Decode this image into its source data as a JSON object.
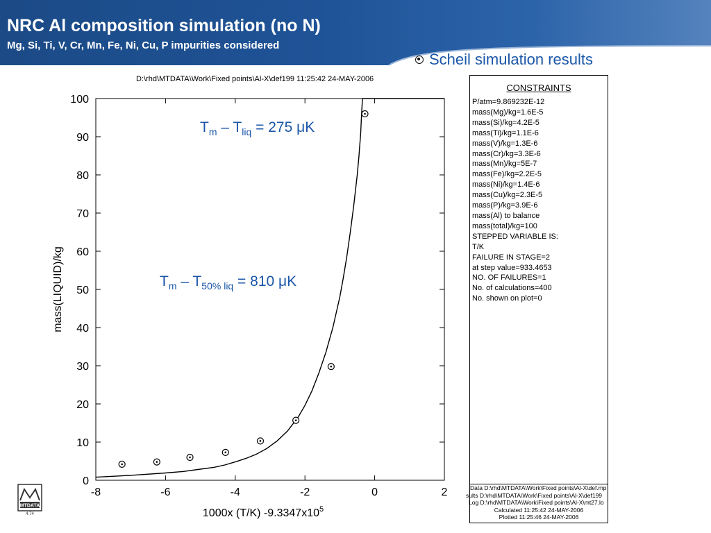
{
  "slide": {
    "title": "NRC Al composition simulation (no N)",
    "subtitle": "Mg, Si, Ti, V, Cr, Mn, Fe, Ni, Cu, P impurities considered",
    "bullet": "Scheil simulation results",
    "colors": {
      "banner": "#1f5397",
      "accent_text": "#1a56a8"
    }
  },
  "file_header": "D:\\rhd\\MTDATA\\Work\\Fixed points\\Al-X\\def199  11:25:42 24-MAY-2006",
  "annotations": [
    {
      "t": "T",
      "s1": "m",
      "dash": " – T",
      "s2": "liq",
      "eq": " = 275 ",
      "mu": "μ",
      "unit": "K"
    },
    {
      "t": "T",
      "s1": "m",
      "dash": " – T",
      "s2": "50% liq",
      "eq": " = 810 ",
      "mu": "μ",
      "unit": "K"
    }
  ],
  "constraints": {
    "title": "CONSTRAINTS",
    "lines": [
      "P/atm=9.869232E-12",
      "mass(Mg)/kg=1.6E-5",
      "mass(Si)/kg=4.2E-5",
      "mass(Ti)/kg=1.1E-6",
      "mass(V)/kg=1.3E-6",
      "mass(Cr)/kg=3.3E-6",
      "mass(Mn)/kg=5E-7",
      "mass(Fe)/kg=2.2E-5",
      "mass(Ni)/kg=1.4E-6",
      "mass(Cu)/kg=2.3E-5",
      "mass(P)/kg=3.9E-6",
      "mass(Al) to balance",
      "mass(total)/kg=100",
      "STEPPED VARIABLE IS:",
      "T/K",
      "FAILURE IN STAGE=2",
      "at step value=933.4653",
      "NO. OF FAILURES=1",
      "No. of calculations=400",
      "No. shown on plot=0"
    ]
  },
  "footer": {
    "lines": [
      "Data D:\\rhd\\MTDATA\\Work\\Fixed points\\Al-X\\def.mp",
      "sults D:\\rhd\\MTDATA\\Work\\Fixed points\\Al-X\\def199",
      "Log D:\\rhd\\MTDATA\\Work\\Fixed points\\Al-X\\mt27.lo",
      "Calculated 11:25:42 24-MAY-2006",
      "Plotted  11:25:46 24-MAY-2006"
    ]
  },
  "logo": {
    "text": "MTDATA",
    "caption": "4.74"
  },
  "chart_data": {
    "type": "line",
    "xlabel": "1000x (T/K) -9.3347x10",
    "xlabel_sup": "5",
    "ylabel": "mass(LIQUID)/kg",
    "xlim": [
      -8,
      2
    ],
    "ylim": [
      0,
      100
    ],
    "x_ticks": [
      -8,
      -6,
      -4,
      -2,
      0,
      2
    ],
    "y_ticks": [
      0,
      10,
      20,
      30,
      40,
      50,
      60,
      70,
      80,
      90,
      100
    ],
    "x_tick_labels": [
      "-8",
      "-6",
      "-4",
      "-2",
      "0",
      "2"
    ],
    "y_tick_labels": [
      "0",
      "10",
      "20",
      "30",
      "40",
      "50",
      "60",
      "70",
      "80",
      "90",
      "100"
    ],
    "grid": false,
    "series": [
      {
        "style": "solid-line",
        "x": [
          -8.0,
          -7.0,
          -6.0,
          -5.5,
          -5.0,
          -4.6,
          -4.3,
          -4.0,
          -3.7,
          -3.4,
          -3.1,
          -2.8,
          -2.5,
          -2.2,
          -2.0,
          -1.8,
          -1.6,
          -1.4,
          -1.2,
          -1.0,
          -0.9,
          -0.8,
          -0.7,
          -0.6,
          -0.5,
          -0.45,
          -0.4,
          -0.38,
          -0.35,
          0.0,
          2.0
        ],
        "y": [
          0.8,
          1.3,
          1.9,
          2.3,
          2.9,
          3.4,
          4.0,
          4.8,
          5.7,
          6.8,
          8.3,
          10.3,
          12.9,
          16.5,
          19.6,
          23.4,
          28.1,
          33.5,
          40.0,
          48.0,
          53.0,
          58.5,
          65.0,
          72.0,
          80.0,
          85.0,
          91.0,
          95.0,
          100.0,
          100.0,
          100.0
        ]
      },
      {
        "style": "circled-dot-markers",
        "x": [
          -7.25,
          -6.25,
          -5.3,
          -4.28,
          -3.28,
          -2.26,
          -1.25,
          -0.28
        ],
        "y": [
          4.2,
          4.8,
          6.0,
          7.3,
          10.3,
          15.7,
          29.8,
          96.0
        ]
      }
    ]
  }
}
